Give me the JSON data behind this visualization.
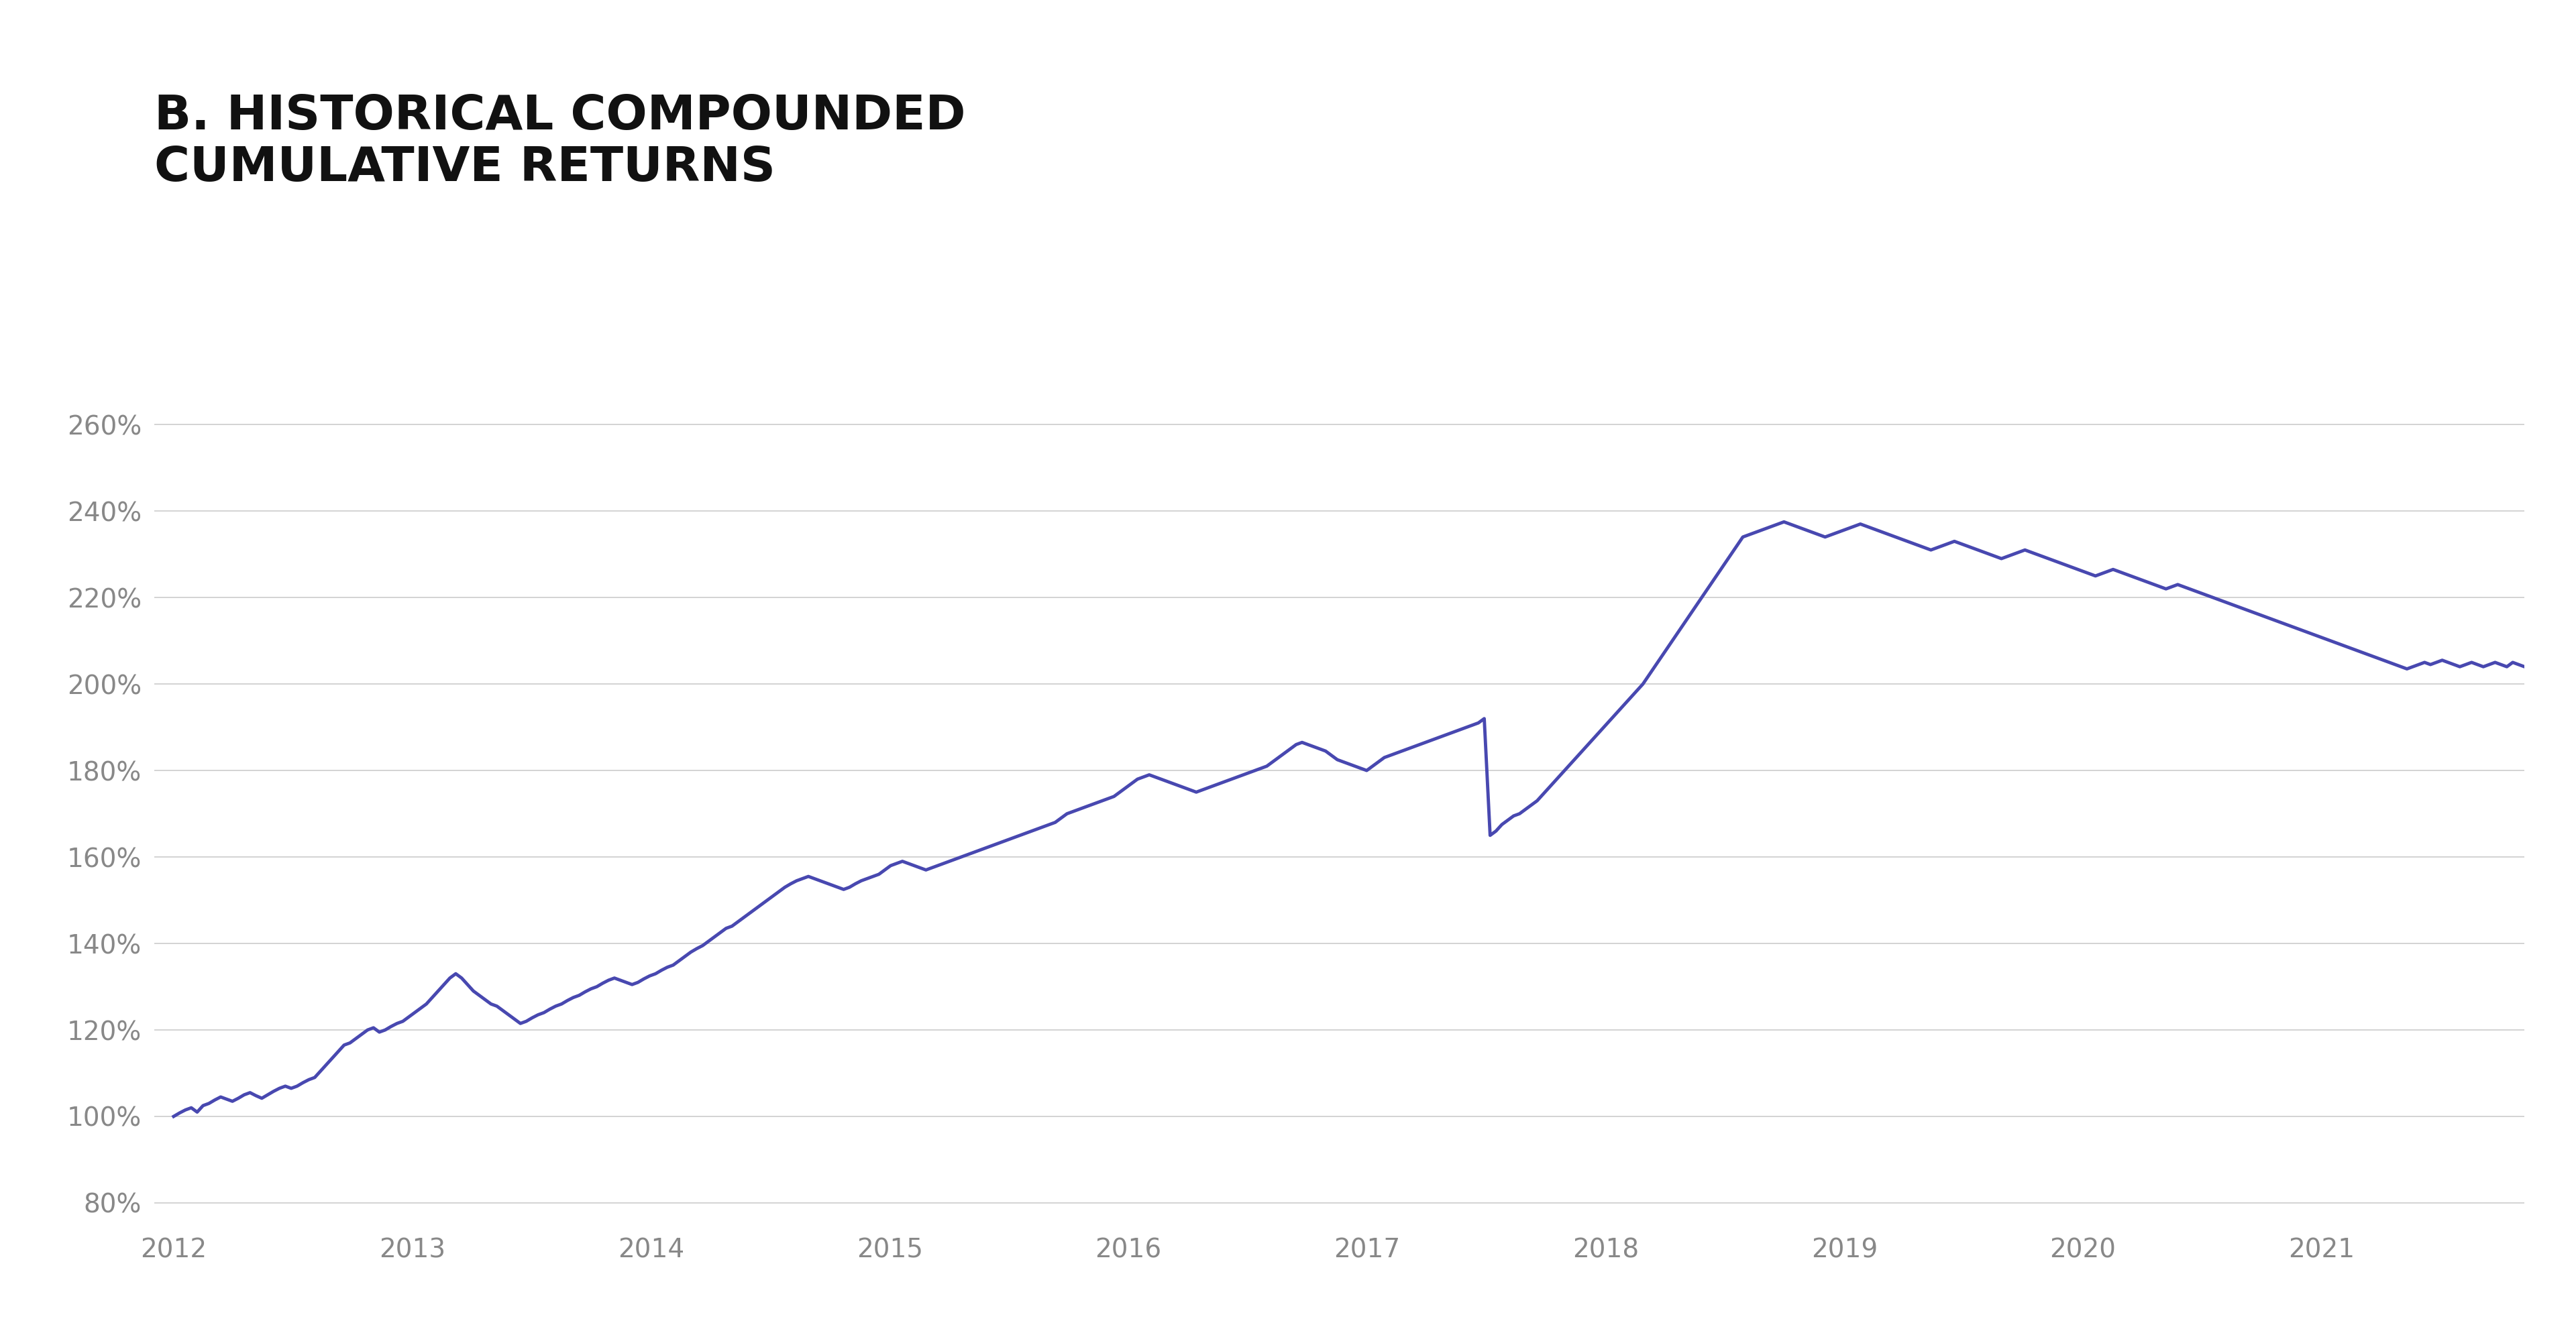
{
  "title_line1": "B. HISTORICAL COMPOUNDED",
  "title_line2": "CUMULATIVE RETURNS",
  "title_fontsize": 52,
  "title_color": "#111111",
  "line_color": "#4848b0",
  "line_width": 3.5,
  "background_color": "#ffffff",
  "grid_color": "#cccccc",
  "tick_color": "#888888",
  "tick_fontsize": 28,
  "ylim": [
    75,
    272
  ],
  "yticks": [
    80,
    100,
    120,
    140,
    160,
    180,
    200,
    220,
    240,
    260
  ],
  "x_start_year": 2012,
  "x_end_year": 2022,
  "xtick_labels": [
    "2012",
    "2013",
    "2014",
    "2015",
    "2016",
    "2017",
    "2018",
    "2019",
    "2020",
    "2021"
  ],
  "series": [
    100.0,
    100.8,
    101.5,
    102.0,
    101.0,
    102.5,
    103.0,
    103.8,
    104.5,
    104.0,
    103.5,
    104.2,
    105.0,
    105.5,
    104.8,
    104.2,
    105.0,
    105.8,
    106.5,
    107.0,
    106.5,
    107.0,
    107.8,
    108.5,
    109.0,
    110.5,
    112.0,
    113.5,
    115.0,
    116.5,
    117.0,
    118.0,
    119.0,
    120.0,
    120.5,
    119.5,
    120.0,
    120.8,
    121.5,
    122.0,
    123.0,
    124.0,
    125.0,
    126.0,
    127.5,
    129.0,
    130.5,
    132.0,
    133.0,
    132.0,
    130.5,
    129.0,
    128.0,
    127.0,
    126.0,
    125.5,
    124.5,
    123.5,
    122.5,
    121.5,
    122.0,
    122.8,
    123.5,
    124.0,
    124.8,
    125.5,
    126.0,
    126.8,
    127.5,
    128.0,
    128.8,
    129.5,
    130.0,
    130.8,
    131.5,
    132.0,
    131.5,
    131.0,
    130.5,
    131.0,
    131.8,
    132.5,
    133.0,
    133.8,
    134.5,
    135.0,
    136.0,
    137.0,
    138.0,
    138.8,
    139.5,
    140.5,
    141.5,
    142.5,
    143.5,
    144.0,
    145.0,
    146.0,
    147.0,
    148.0,
    149.0,
    150.0,
    151.0,
    152.0,
    153.0,
    153.8,
    154.5,
    155.0,
    155.5,
    155.0,
    154.5,
    154.0,
    153.5,
    153.0,
    152.5,
    153.0,
    153.8,
    154.5,
    155.0,
    155.5,
    156.0,
    157.0,
    158.0,
    158.5,
    159.0,
    158.5,
    158.0,
    157.5,
    157.0,
    157.5,
    158.0,
    158.5,
    159.0,
    159.5,
    160.0,
    160.5,
    161.0,
    161.5,
    162.0,
    162.5,
    163.0,
    163.5,
    164.0,
    164.5,
    165.0,
    165.5,
    166.0,
    166.5,
    167.0,
    167.5,
    168.0,
    169.0,
    170.0,
    170.5,
    171.0,
    171.5,
    172.0,
    172.5,
    173.0,
    173.5,
    174.0,
    175.0,
    176.0,
    177.0,
    178.0,
    178.5,
    179.0,
    178.5,
    178.0,
    177.5,
    177.0,
    176.5,
    176.0,
    175.5,
    175.0,
    175.5,
    176.0,
    176.5,
    177.0,
    177.5,
    178.0,
    178.5,
    179.0,
    179.5,
    180.0,
    180.5,
    181.0,
    182.0,
    183.0,
    184.0,
    185.0,
    186.0,
    186.5,
    186.0,
    185.5,
    185.0,
    184.5,
    183.5,
    182.5,
    182.0,
    181.5,
    181.0,
    180.5,
    180.0,
    181.0,
    182.0,
    183.0,
    183.5,
    184.0,
    184.5,
    185.0,
    185.5,
    186.0,
    186.5,
    187.0,
    187.5,
    188.0,
    188.5,
    189.0,
    189.5,
    190.0,
    190.5,
    191.0,
    192.0,
    165.0,
    166.0,
    167.5,
    168.5,
    169.5,
    170.0,
    171.0,
    172.0,
    173.0,
    174.5,
    176.0,
    177.5,
    179.0,
    180.5,
    182.0,
    183.5,
    185.0,
    186.5,
    188.0,
    189.5,
    191.0,
    192.5,
    194.0,
    195.5,
    197.0,
    198.5,
    200.0,
    202.0,
    204.0,
    206.0,
    208.0,
    210.0,
    212.0,
    214.0,
    216.0,
    218.0,
    220.0,
    222.0,
    224.0,
    226.0,
    228.0,
    230.0,
    232.0,
    234.0,
    234.5,
    235.0,
    235.5,
    236.0,
    236.5,
    237.0,
    237.5,
    237.0,
    236.5,
    236.0,
    235.5,
    235.0,
    234.5,
    234.0,
    234.5,
    235.0,
    235.5,
    236.0,
    236.5,
    237.0,
    236.5,
    236.0,
    235.5,
    235.0,
    234.5,
    234.0,
    233.5,
    233.0,
    232.5,
    232.0,
    231.5,
    231.0,
    231.5,
    232.0,
    232.5,
    233.0,
    232.5,
    232.0,
    231.5,
    231.0,
    230.5,
    230.0,
    229.5,
    229.0,
    229.5,
    230.0,
    230.5,
    231.0,
    230.5,
    230.0,
    229.5,
    229.0,
    228.5,
    228.0,
    227.5,
    227.0,
    226.5,
    226.0,
    225.5,
    225.0,
    225.5,
    226.0,
    226.5,
    226.0,
    225.5,
    225.0,
    224.5,
    224.0,
    223.5,
    223.0,
    222.5,
    222.0,
    222.5,
    223.0,
    222.5,
    222.0,
    221.5,
    221.0,
    220.5,
    220.0,
    219.5,
    219.0,
    218.5,
    218.0,
    217.5,
    217.0,
    216.5,
    216.0,
    215.5,
    215.0,
    214.5,
    214.0,
    213.5,
    213.0,
    212.5,
    212.0,
    211.5,
    211.0,
    210.5,
    210.0,
    209.5,
    209.0,
    208.5,
    208.0,
    207.5,
    207.0,
    206.5,
    206.0,
    205.5,
    205.0,
    204.5,
    204.0,
    203.5,
    204.0,
    204.5,
    205.0,
    204.5,
    205.0,
    205.5,
    205.0,
    204.5,
    204.0,
    204.5,
    205.0,
    204.5,
    204.0,
    204.5,
    205.0,
    204.5,
    204.0,
    205.0,
    204.5,
    204.0
  ]
}
